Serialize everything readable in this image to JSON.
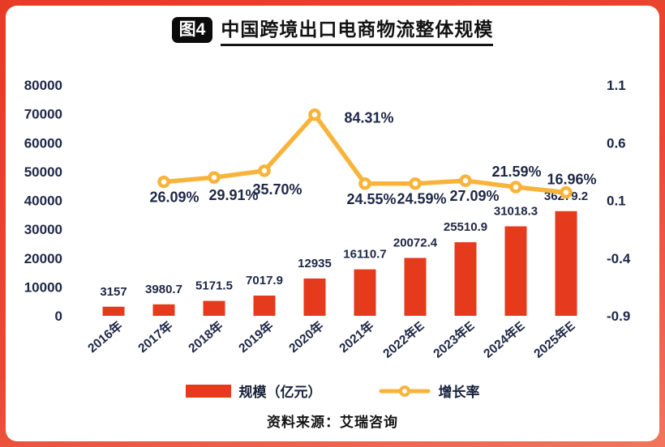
{
  "header": {
    "badge": "图4",
    "title": "中国跨境出口电商物流整体规模"
  },
  "legend": {
    "bar_label": "规模（亿元）",
    "line_label": "增长率"
  },
  "footer": {
    "source": "资料来源：艾瑞咨询"
  },
  "colors": {
    "background": "#e73b25",
    "card": "#ffffff",
    "bar": "#e63a1c",
    "line": "#f8b43a",
    "text": "#1e2746",
    "badge_bg": "#0b0b0b",
    "badge_text": "#ffffff"
  },
  "chart_data": {
    "type": "bar+line",
    "title": "中国跨境出口电商物流整体规模",
    "categories": [
      "2016年",
      "2017年",
      "2018年",
      "2019年",
      "2020年",
      "2021年",
      "2022年E",
      "2023年E",
      "2024年E",
      "2025年E"
    ],
    "series": [
      {
        "name": "规模（亿元）",
        "type": "bar",
        "axis": "left",
        "values": [
          3157,
          3980.7,
          5171.5,
          7017.9,
          12935,
          16110.7,
          20072.4,
          25510.9,
          31018.3,
          36279.2
        ]
      },
      {
        "name": "增长率",
        "type": "line",
        "axis": "right",
        "x_start_index": 1,
        "values_percent": [
          26.09,
          29.91,
          35.7,
          84.31,
          24.55,
          24.59,
          27.09,
          21.59,
          16.96
        ]
      }
    ],
    "left_axis": {
      "min": 0,
      "max": 80000,
      "ticks": [
        80000,
        70000,
        60000,
        50000,
        40000,
        30000,
        20000,
        10000,
        0
      ]
    },
    "right_axis": {
      "min": -0.9,
      "max": 1.1,
      "ticks": [
        1.1,
        0.6,
        0.1,
        -0.4,
        -0.9
      ]
    },
    "grid": false,
    "legend_position": "bottom"
  }
}
